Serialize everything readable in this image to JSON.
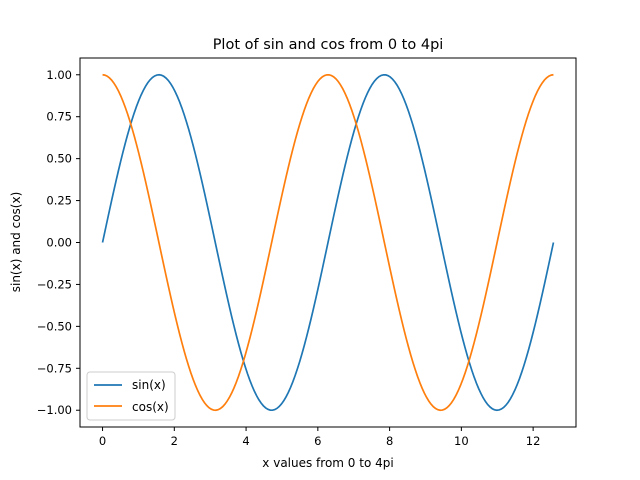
{
  "chart_data": {
    "type": "line",
    "title": "Plot of sin and cos from 0 to 4pi",
    "xlabel": "x values from 0 to 4pi",
    "ylabel": "sin(x) and cos(x)",
    "xlim": [
      -0.6283,
      13.1947
    ],
    "ylim": [
      -1.1,
      1.1
    ],
    "xticks": [
      0,
      2,
      4,
      6,
      8,
      10,
      12
    ],
    "xtick_labels": [
      "0",
      "2",
      "4",
      "6",
      "8",
      "10",
      "12"
    ],
    "yticks": [
      -1.0,
      -0.75,
      -0.5,
      -0.25,
      0.0,
      0.25,
      0.5,
      0.75,
      1.0
    ],
    "ytick_labels": [
      "−1.00",
      "−0.75",
      "−0.50",
      "−0.25",
      "0.00",
      "0.25",
      "0.50",
      "0.75",
      "1.00"
    ],
    "grid": false,
    "legend_position": "lower-left",
    "x_domain": [
      0,
      12.5664
    ],
    "series": [
      {
        "name": "sin(x)",
        "function": "sin",
        "color": "#1f77b4"
      },
      {
        "name": "cos(x)",
        "function": "cos",
        "color": "#ff7f0e"
      }
    ]
  }
}
